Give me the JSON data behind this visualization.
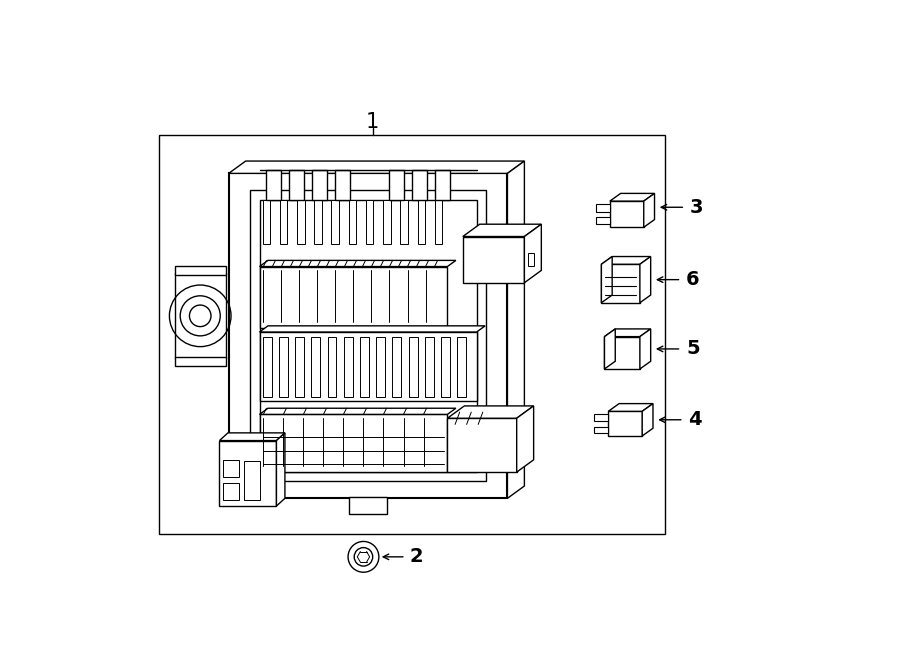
{
  "bg_color": "#ffffff",
  "line_color": "#000000",
  "title": "1",
  "label2": "2",
  "label3": "3",
  "label4": "4",
  "label5": "5",
  "label6": "6",
  "figsize": [
    9.0,
    6.62
  ],
  "dpi": 100
}
